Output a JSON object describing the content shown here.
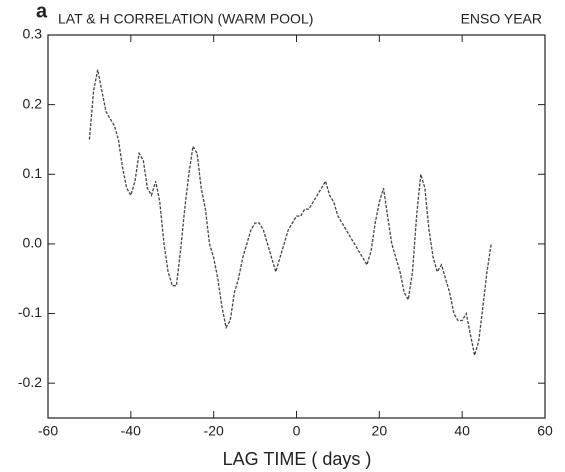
{
  "chart_data": {
    "type": "line",
    "panel_label": "a",
    "title": "LAT & H CORRELATION (WARM POOL)",
    "subtitle": "ENSO YEAR",
    "xlabel": "LAG TIME ( days )",
    "x": [
      -50,
      -49,
      -48,
      -47,
      -46,
      -45,
      -44,
      -43,
      -42,
      -41,
      -40,
      -39,
      -38,
      -37,
      -36,
      -35,
      -34,
      -33,
      -32,
      -31,
      -30,
      -29,
      -28,
      -27,
      -26,
      -25,
      -24,
      -23,
      -22,
      -21,
      -20,
      -19,
      -18,
      -17,
      -16,
      -15,
      -14,
      -13,
      -12,
      -11,
      -10,
      -9,
      -8,
      -7,
      -6,
      -5,
      -4,
      -3,
      -2,
      -1,
      0,
      1,
      2,
      3,
      4,
      5,
      6,
      7,
      8,
      9,
      10,
      11,
      12,
      13,
      14,
      15,
      16,
      17,
      18,
      19,
      20,
      21,
      22,
      23,
      24,
      25,
      26,
      27,
      28,
      29,
      30,
      31,
      32,
      33,
      34,
      35,
      36,
      37,
      38,
      39,
      40,
      41,
      42,
      43,
      44,
      45,
      46,
      47
    ],
    "series": [
      {
        "color": "#444444",
        "values": [
          0.15,
          0.22,
          0.25,
          0.22,
          0.19,
          0.18,
          0.17,
          0.15,
          0.11,
          0.08,
          0.07,
          0.09,
          0.13,
          0.12,
          0.08,
          0.07,
          0.09,
          0.06,
          0.0,
          -0.04,
          -0.06,
          -0.06,
          -0.01,
          0.05,
          0.1,
          0.14,
          0.13,
          0.08,
          0.05,
          0.0,
          -0.02,
          -0.05,
          -0.09,
          -0.12,
          -0.11,
          -0.07,
          -0.05,
          -0.02,
          0.0,
          0.02,
          0.03,
          0.03,
          0.02,
          0.0,
          -0.02,
          -0.04,
          -0.02,
          0.0,
          0.02,
          0.03,
          0.04,
          0.04,
          0.05,
          0.05,
          0.06,
          0.07,
          0.08,
          0.09,
          0.07,
          0.06,
          0.04,
          0.03,
          0.02,
          0.01,
          0.0,
          -0.01,
          -0.02,
          -0.03,
          -0.01,
          0.03,
          0.06,
          0.08,
          0.04,
          0.0,
          -0.02,
          -0.04,
          -0.07,
          -0.08,
          -0.04,
          0.04,
          0.1,
          0.08,
          0.02,
          -0.02,
          -0.04,
          -0.03,
          -0.05,
          -0.07,
          -0.1,
          -0.11,
          -0.11,
          -0.1,
          -0.13,
          -0.16,
          -0.14,
          -0.09,
          -0.04,
          0.0
        ]
      }
    ],
    "xlim": [
      -60,
      60
    ],
    "xticks": [
      -60,
      -40,
      -20,
      0,
      20,
      40,
      60
    ],
    "ylim": [
      -0.25,
      0.3
    ],
    "yticks": [
      -0.2,
      -0.1,
      {
        "value": 0,
        "label": "0.0"
      },
      0.1,
      0.2,
      0.3
    ]
  }
}
